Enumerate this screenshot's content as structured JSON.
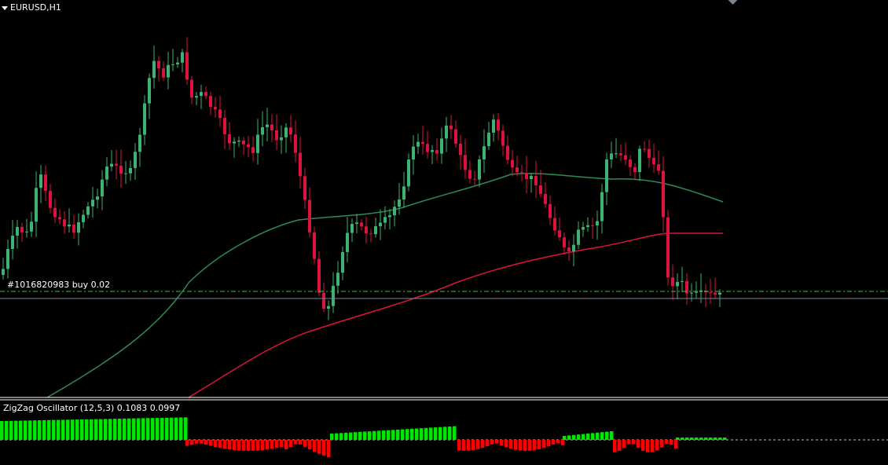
{
  "main_chart": {
    "symbol_title": "EURUSD,H1",
    "order_label": "#1016820983 buy 0.02"
  },
  "oscillator": {
    "title": "ZigZag Oscillator (12,5,3) 0.1083 0.0997"
  },
  "colors": {
    "background": "#000000",
    "bull_candle": "#3cb371",
    "bear_candle": "#dc143c",
    "ma_fast": "#2e8b57",
    "ma_slow": "#dc143c",
    "price_line": "#778899",
    "order_line": "#32cd32",
    "osc_positive": "#00e600",
    "osc_negative": "#ff0000"
  },
  "icons": {
    "collapse": "triangle-down-icon",
    "scroll_marker": "diamond-icon"
  }
}
